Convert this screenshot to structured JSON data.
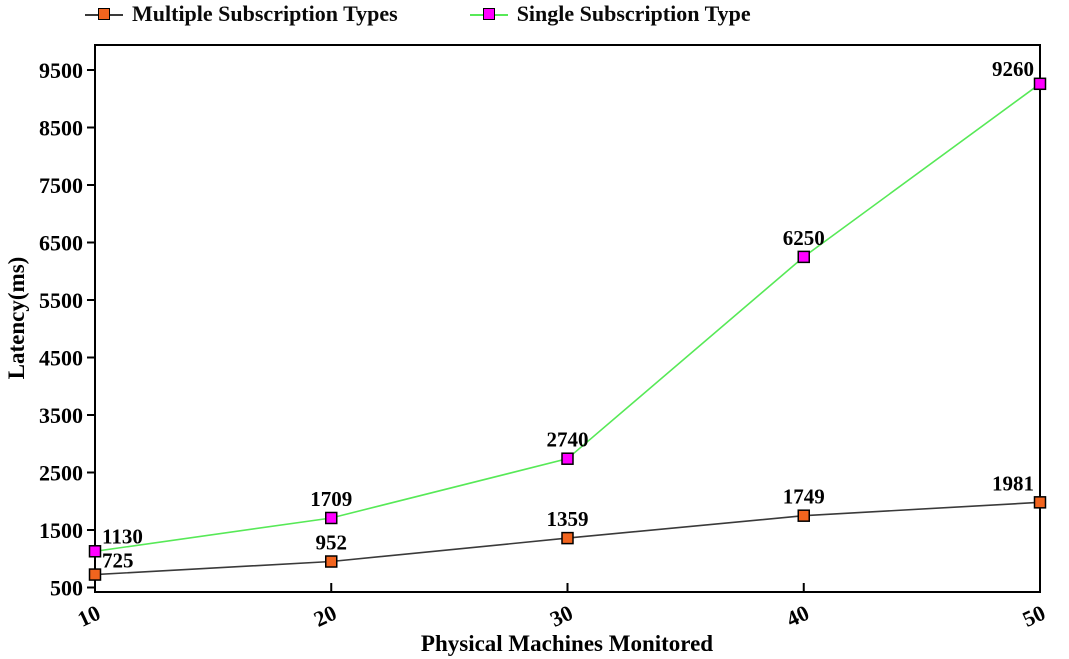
{
  "chart_data": {
    "type": "line",
    "x": [
      10,
      20,
      30,
      40,
      50
    ],
    "series": [
      {
        "name": "Multiple Subscription Types",
        "values": [
          725,
          952,
          1359,
          1749,
          1981
        ],
        "line_color": "#3a3a3a",
        "marker_color": "#f2641e"
      },
      {
        "name": "Single Subscription Type",
        "values": [
          1130,
          1709,
          2740,
          6250,
          9260
        ],
        "line_color": "#57e957",
        "marker_color": "#ff00ff"
      }
    ],
    "xlabel": "Physical Machines Monitored",
    "ylabel": "Latency(ms)",
    "xticks": [
      10,
      20,
      30,
      40,
      50
    ],
    "yticks": [
      500,
      1500,
      2500,
      3500,
      4500,
      5500,
      6500,
      7500,
      8500,
      9500
    ],
    "xlim": [
      10,
      50
    ],
    "ylim": [
      500,
      9500
    ],
    "grid": false,
    "legend_position": "top",
    "marker_shape": "square",
    "data_labels_visible": true,
    "axis_color": "#000000",
    "background_color": "#ffffff"
  }
}
